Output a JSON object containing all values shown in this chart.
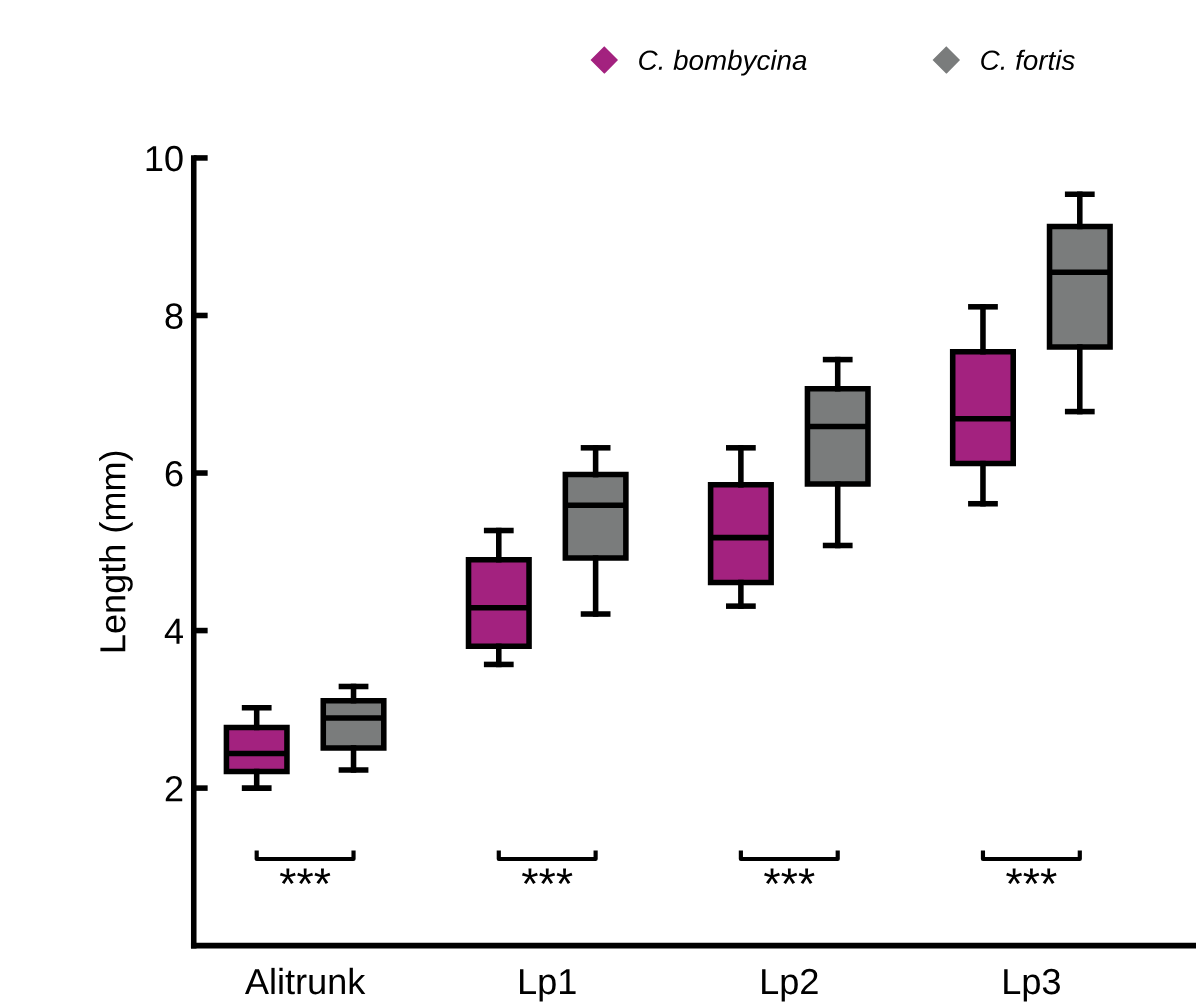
{
  "chart_data": {
    "type": "box",
    "ylabel": "Length (mm)",
    "categories": [
      "Alitrunk",
      "Lp1",
      "Lp2",
      "Lp3"
    ],
    "series": [
      {
        "name": "C. bombycina",
        "color": "#a3227f",
        "boxes": [
          {
            "low": 2.0,
            "q1": 2.21,
            "median": 2.44,
            "q3": 2.77,
            "high": 3.02
          },
          {
            "low": 3.57,
            "q1": 3.8,
            "median": 4.29,
            "q3": 4.9,
            "high": 5.27
          },
          {
            "low": 4.31,
            "q1": 4.61,
            "median": 5.18,
            "q3": 5.85,
            "high": 6.32
          },
          {
            "low": 5.61,
            "q1": 6.12,
            "median": 6.69,
            "q3": 7.54,
            "high": 8.11
          }
        ]
      },
      {
        "name": "C. fortis",
        "color": "#7a7c7c",
        "boxes": [
          {
            "low": 2.23,
            "q1": 2.51,
            "median": 2.89,
            "q3": 3.11,
            "high": 3.29
          },
          {
            "low": 4.21,
            "q1": 4.92,
            "median": 5.59,
            "q3": 5.98,
            "high": 6.32
          },
          {
            "low": 5.08,
            "q1": 5.86,
            "median": 6.59,
            "q3": 7.07,
            "high": 7.44
          },
          {
            "low": 6.78,
            "q1": 7.6,
            "median": 8.55,
            "q3": 9.13,
            "high": 9.54
          }
        ]
      }
    ],
    "annotations": [
      "***",
      "***",
      "***",
      "***"
    ],
    "ylim": [
      0,
      10
    ],
    "yticks": [
      2,
      4,
      6,
      8,
      10
    ],
    "grid": false,
    "legend": "top right",
    "marker": "diamond"
  }
}
